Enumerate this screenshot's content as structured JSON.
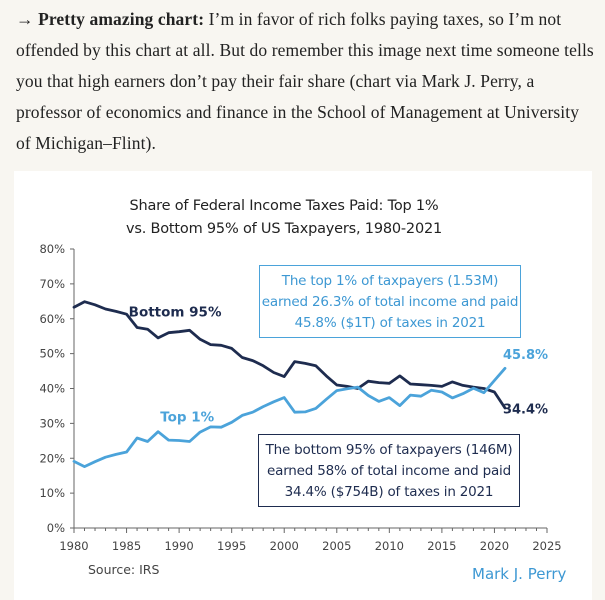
{
  "article": {
    "arrow": "→",
    "lead": "Pretty amazing chart:",
    "body": " I’m in favor of rich folks paying taxes, so I’m not offended by this chart at all. But do remember this image next time someone tells you that high earners don’t pay their fair share (chart via Mark J. Perry, a professor of economics and finance in the School of Management at University of Michigan–Flint)."
  },
  "chart_data": {
    "type": "line",
    "title": "Share of Federal Income Taxes Paid: Top 1% vs. Bottom 95% of US Taxpayers, 1980-2021",
    "title_line1": "Share of Federal Income Taxes Paid: Top 1%",
    "title_line2": "vs. Bottom 95% of US Taxpayers, 1980-2021",
    "xlim": [
      1980,
      2025
    ],
    "ylim": [
      0,
      80
    ],
    "x_ticks": [
      "1980",
      "1985",
      "1990",
      "1995",
      "2000",
      "2005",
      "2010",
      "2015",
      "2020",
      "2025"
    ],
    "y_ticks": [
      "0%",
      "10%",
      "20%",
      "30%",
      "40%",
      "50%",
      "60%",
      "70%",
      "80%"
    ],
    "grid": false,
    "x": [
      1980,
      1981,
      1982,
      1983,
      1984,
      1985,
      1986,
      1987,
      1988,
      1989,
      1990,
      1991,
      1992,
      1993,
      1994,
      1995,
      1996,
      1997,
      1998,
      1999,
      2000,
      2001,
      2002,
      2003,
      2004,
      2005,
      2006,
      2007,
      2008,
      2009,
      2010,
      2011,
      2012,
      2013,
      2014,
      2015,
      2016,
      2017,
      2018,
      2019,
      2020,
      2021
    ],
    "series": [
      {
        "name": "Bottom 95%",
        "color": "#1e2c4f",
        "values": [
          63.3,
          64.9,
          64.0,
          62.8,
          62.1,
          61.3,
          57.5,
          57.0,
          54.5,
          56.0,
          56.3,
          56.7,
          54.1,
          52.6,
          52.4,
          51.5,
          48.9,
          48.0,
          46.5,
          44.6,
          43.4,
          47.7,
          47.2,
          46.5,
          43.6,
          41.0,
          40.6,
          40.0,
          42.1,
          41.7,
          41.5,
          43.6,
          41.3,
          41.1,
          40.9,
          40.6,
          41.9,
          40.9,
          40.4,
          40.0,
          39.0,
          34.4
        ],
        "end_label": "34.4%"
      },
      {
        "name": "Top 1%",
        "color": "#4ba3da",
        "values": [
          19.1,
          17.6,
          19.0,
          20.3,
          21.1,
          21.8,
          25.8,
          24.8,
          27.6,
          25.2,
          25.1,
          24.8,
          27.5,
          29.0,
          28.9,
          30.3,
          32.3,
          33.2,
          34.8,
          36.2,
          37.4,
          33.2,
          33.3,
          34.3,
          36.9,
          39.4,
          39.9,
          40.4,
          38.0,
          36.3,
          37.4,
          35.1,
          38.1,
          37.8,
          39.5,
          39.0,
          37.3,
          38.5,
          40.1,
          38.8,
          42.3,
          45.8
        ],
        "end_label": "45.8%"
      }
    ],
    "callouts": {
      "top": [
        "The top 1% of taxpayers (1.53M)",
        "earned 26.3% of total income and paid",
        "45.8% ($1T) of taxes in 2021"
      ],
      "bottom": [
        "The bottom 95% of taxpayers (146M)",
        "earned 58% of total income and paid",
        "34.4% ($754B) of taxes in 2021"
      ]
    },
    "source": "Source: IRS",
    "brand": "Mark J. Perry"
  }
}
